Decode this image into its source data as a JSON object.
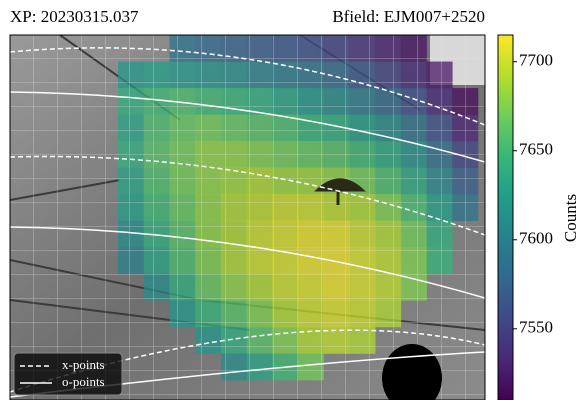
{
  "chart_data": {
    "type": "heatmap",
    "title": "XP: 20230315.037",
    "subtitle": "Bfield: EJM007+2520",
    "colorbar_label": "Counts",
    "colormap": "viridis",
    "zlim": [
      7510,
      7715
    ],
    "zticks": [
      7550,
      7600,
      7650,
      7700
    ],
    "overlay_lines": [
      {
        "name": "x-points",
        "style": "dashed"
      },
      {
        "name": "o-points",
        "style": "solid"
      }
    ],
    "z": [
      [
        null,
        null,
        7590,
        7580,
        7575,
        7570,
        7565,
        7560,
        7550,
        7540,
        7530,
        7520,
        null,
        null
      ],
      [
        7620,
        7625,
        7620,
        7615,
        7610,
        7600,
        7595,
        7590,
        7580,
        7565,
        7550,
        7535,
        7520,
        null
      ],
      [
        7640,
        7650,
        7655,
        7650,
        7645,
        7640,
        7630,
        7620,
        7610,
        7595,
        7580,
        7560,
        7535,
        7515
      ],
      [
        7630,
        7655,
        7665,
        7670,
        7665,
        7660,
        7655,
        7645,
        7640,
        7625,
        7610,
        7590,
        7560,
        7530
      ],
      [
        7640,
        7660,
        7670,
        7680,
        7680,
        7675,
        7670,
        7665,
        7660,
        7650,
        7635,
        7615,
        7585,
        7550
      ],
      [
        7630,
        7655,
        7670,
        7680,
        7685,
        7690,
        7685,
        7685,
        7680,
        7670,
        7655,
        7635,
        7605,
        7570
      ],
      [
        7625,
        7650,
        7665,
        7680,
        7690,
        7695,
        7700,
        7700,
        7695,
        7690,
        7675,
        7655,
        7625,
        7590
      ],
      [
        7610,
        7640,
        7660,
        7680,
        7690,
        7700,
        7705,
        7710,
        7710,
        7700,
        7690,
        7670,
        7640,
        null
      ],
      [
        7600,
        7630,
        7655,
        7675,
        7690,
        7700,
        7705,
        7710,
        7712,
        7705,
        7695,
        7675,
        7645,
        null
      ],
      [
        null,
        7610,
        7640,
        7665,
        7680,
        7690,
        7700,
        7705,
        7710,
        7705,
        7695,
        7675,
        null,
        null
      ],
      [
        null,
        null,
        7620,
        7645,
        7660,
        7675,
        7690,
        7700,
        7705,
        7700,
        7690,
        null,
        null,
        null
      ],
      [
        null,
        null,
        null,
        7620,
        7640,
        7660,
        7675,
        7690,
        7695,
        7690,
        null,
        null,
        null,
        null
      ],
      [
        null,
        null,
        null,
        null,
        7610,
        7630,
        7650,
        7670,
        null,
        null,
        null,
        null,
        null,
        null
      ]
    ]
  }
}
